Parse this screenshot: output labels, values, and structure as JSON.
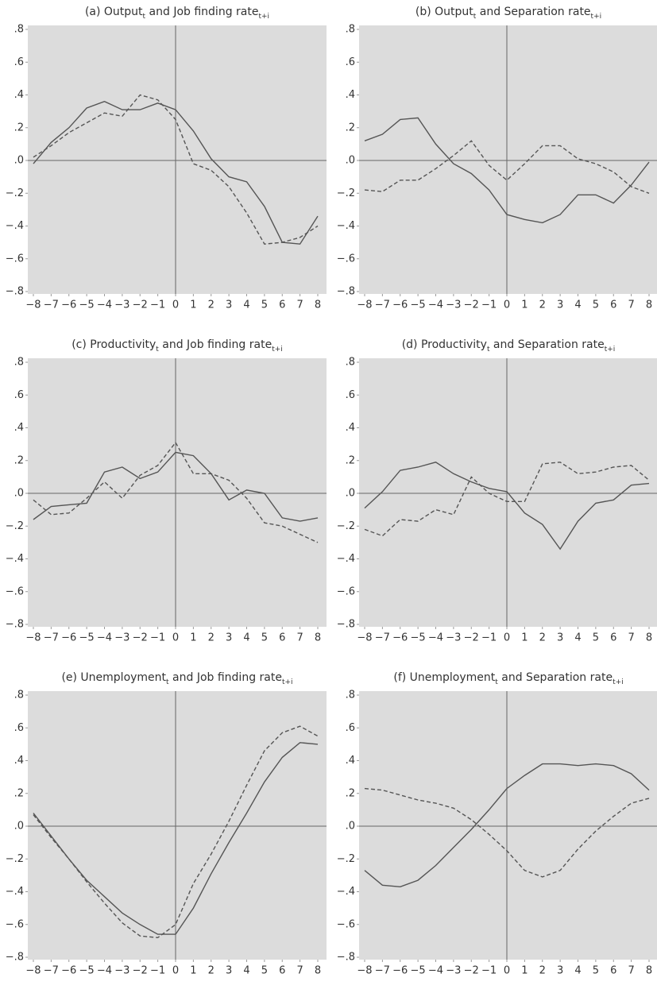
{
  "chart_data": [
    {
      "type": "line",
      "title": {
        "text": [
          "(a) Output",
          " and Job finding rate"
        ],
        "subscripts": [
          "t",
          "t+i"
        ]
      },
      "x": [
        -8,
        -7,
        -6,
        -5,
        -4,
        -3,
        -2,
        -1,
        0,
        1,
        2,
        3,
        4,
        5,
        6,
        7,
        8
      ],
      "xlim": [
        -8,
        8
      ],
      "xticks": [
        {
          "value": -8,
          "label": "−8"
        },
        {
          "value": -7,
          "label": "−7"
        },
        {
          "value": -6,
          "label": "−6"
        },
        {
          "value": -5,
          "label": "−5"
        },
        {
          "value": -4,
          "label": "−4"
        },
        {
          "value": -3,
          "label": "−3"
        },
        {
          "value": -2,
          "label": "−2"
        },
        {
          "value": -1,
          "label": "−1"
        },
        0,
        1,
        2,
        3,
        4,
        5,
        6,
        7,
        8
      ],
      "ylim": [
        -0.8,
        0.8
      ],
      "yticks": [
        {
          "value": -0.8,
          "label": "−.8"
        },
        {
          "value": -0.6,
          "label": "−.6"
        },
        {
          "value": -0.4,
          "label": "−.4"
        },
        {
          "value": -0.2,
          "label": "−.2"
        },
        {
          "value": 0,
          "label": ".0"
        },
        {
          "value": 0.2,
          "label": ".2"
        },
        {
          "value": 0.4,
          "label": ".4"
        },
        {
          "value": 0.6,
          "label": ".6"
        },
        {
          "value": 0.8,
          "label": ".8"
        }
      ],
      "series": [
        {
          "color": "#555555",
          "style": "solid",
          "values": [
            -0.02,
            0.11,
            0.2,
            0.32,
            0.36,
            0.31,
            0.31,
            0.35,
            0.31,
            0.18,
            0.01,
            -0.1,
            -0.13,
            -0.28,
            -0.5,
            -0.51,
            -0.34
          ]
        },
        {
          "color": "#555555",
          "style": "dashed",
          "values": [
            0.02,
            0.09,
            0.17,
            0.23,
            0.29,
            0.27,
            0.4,
            0.37,
            0.25,
            -0.02,
            -0.06,
            -0.16,
            -0.32,
            -0.51,
            -0.5,
            -0.47,
            -0.4
          ]
        }
      ]
    },
    {
      "type": "line",
      "title": {
        "text": [
          "(b) Output",
          " and Separation rate"
        ],
        "subscripts": [
          "t",
          "t+i"
        ]
      },
      "x": [
        -8,
        -7,
        -6,
        -5,
        -4,
        -3,
        -2,
        -1,
        0,
        1,
        2,
        3,
        4,
        5,
        6,
        7,
        8
      ],
      "xlim": [
        -8,
        8
      ],
      "xticks": [
        {
          "value": -8,
          "label": "−8"
        },
        {
          "value": -7,
          "label": "−7"
        },
        {
          "value": -6,
          "label": "−6"
        },
        {
          "value": -5,
          "label": "−5"
        },
        {
          "value": -4,
          "label": "−4"
        },
        {
          "value": -3,
          "label": "−3"
        },
        {
          "value": -2,
          "label": "−2"
        },
        {
          "value": -1,
          "label": "−1"
        },
        0,
        1,
        2,
        3,
        4,
        5,
        6,
        7,
        8
      ],
      "ylim": [
        -0.8,
        0.8
      ],
      "yticks": [
        {
          "value": -0.8,
          "label": "−.8"
        },
        {
          "value": -0.6,
          "label": "−.6"
        },
        {
          "value": -0.4,
          "label": "−.4"
        },
        {
          "value": -0.2,
          "label": "−.2"
        },
        {
          "value": 0,
          "label": ".0"
        },
        {
          "value": 0.2,
          "label": ".2"
        },
        {
          "value": 0.4,
          "label": ".4"
        },
        {
          "value": 0.6,
          "label": ".6"
        },
        {
          "value": 0.8,
          "label": ".8"
        }
      ],
      "series": [
        {
          "color": "#555555",
          "style": "solid",
          "values": [
            0.12,
            0.16,
            0.25,
            0.26,
            0.1,
            -0.02,
            -0.08,
            -0.18,
            -0.33,
            -0.36,
            -0.38,
            -0.33,
            -0.21,
            -0.21,
            -0.26,
            -0.15,
            -0.01
          ]
        },
        {
          "color": "#555555",
          "style": "dashed",
          "values": [
            -0.18,
            -0.19,
            -0.12,
            -0.12,
            -0.05,
            0.03,
            0.12,
            -0.03,
            -0.12,
            -0.02,
            0.09,
            0.09,
            0.01,
            -0.02,
            -0.07,
            -0.16,
            -0.2
          ]
        }
      ]
    },
    {
      "type": "line",
      "title": {
        "text": [
          "(c) Productivity",
          " and Job finding rate"
        ],
        "subscripts": [
          "t",
          "t+i"
        ]
      },
      "x": [
        -8,
        -7,
        -6,
        -5,
        -4,
        -3,
        -2,
        -1,
        0,
        1,
        2,
        3,
        4,
        5,
        6,
        7,
        8
      ],
      "xlim": [
        -8,
        8
      ],
      "xticks": [
        {
          "value": -8,
          "label": "−8"
        },
        {
          "value": -7,
          "label": "−7"
        },
        {
          "value": -6,
          "label": "−6"
        },
        {
          "value": -5,
          "label": "−5"
        },
        {
          "value": -4,
          "label": "−4"
        },
        {
          "value": -3,
          "label": "−3"
        },
        {
          "value": -2,
          "label": "−2"
        },
        {
          "value": -1,
          "label": "−1"
        },
        0,
        1,
        2,
        3,
        4,
        5,
        6,
        7,
        8
      ],
      "ylim": [
        -0.8,
        0.8
      ],
      "yticks": [
        {
          "value": -0.8,
          "label": "−.8"
        },
        {
          "value": -0.6,
          "label": "−.6"
        },
        {
          "value": -0.4,
          "label": "−.4"
        },
        {
          "value": -0.2,
          "label": "−.2"
        },
        {
          "value": 0,
          "label": ".0"
        },
        {
          "value": 0.2,
          "label": ".2"
        },
        {
          "value": 0.4,
          "label": ".4"
        },
        {
          "value": 0.6,
          "label": ".6"
        },
        {
          "value": 0.8,
          "label": ".8"
        }
      ],
      "series": [
        {
          "color": "#555555",
          "style": "solid",
          "values": [
            -0.16,
            -0.08,
            -0.07,
            -0.06,
            0.13,
            0.16,
            0.09,
            0.13,
            0.25,
            0.23,
            0.12,
            -0.04,
            0.02,
            0.0,
            -0.15,
            -0.17,
            -0.15
          ]
        },
        {
          "color": "#555555",
          "style": "dashed",
          "values": [
            -0.04,
            -0.13,
            -0.12,
            -0.03,
            0.07,
            -0.03,
            0.11,
            0.17,
            0.31,
            0.12,
            0.12,
            0.08,
            -0.03,
            -0.18,
            -0.2,
            -0.25,
            -0.3
          ]
        }
      ]
    },
    {
      "type": "line",
      "title": {
        "text": [
          "(d) Productivity",
          " and Separation rate"
        ],
        "subscripts": [
          "t",
          "t+i"
        ]
      },
      "x": [
        -8,
        -7,
        -6,
        -5,
        -4,
        -3,
        -2,
        -1,
        0,
        1,
        2,
        3,
        4,
        5,
        6,
        7,
        8
      ],
      "xlim": [
        -8,
        8
      ],
      "xticks": [
        {
          "value": -8,
          "label": "−8"
        },
        {
          "value": -7,
          "label": "−7"
        },
        {
          "value": -6,
          "label": "−6"
        },
        {
          "value": -5,
          "label": "−5"
        },
        {
          "value": -4,
          "label": "−4"
        },
        {
          "value": -3,
          "label": "−3"
        },
        {
          "value": -2,
          "label": "−2"
        },
        {
          "value": -1,
          "label": "−1"
        },
        0,
        1,
        2,
        3,
        4,
        5,
        6,
        7,
        8
      ],
      "ylim": [
        -0.8,
        0.8
      ],
      "yticks": [
        {
          "value": -0.8,
          "label": "−.8"
        },
        {
          "value": -0.6,
          "label": "−.6"
        },
        {
          "value": -0.4,
          "label": "−.4"
        },
        {
          "value": -0.2,
          "label": "−.2"
        },
        {
          "value": 0,
          "label": ".0"
        },
        {
          "value": 0.2,
          "label": ".2"
        },
        {
          "value": 0.4,
          "label": ".4"
        },
        {
          "value": 0.6,
          "label": ".6"
        },
        {
          "value": 0.8,
          "label": ".8"
        }
      ],
      "series": [
        {
          "color": "#555555",
          "style": "solid",
          "values": [
            -0.09,
            0.01,
            0.14,
            0.16,
            0.19,
            0.12,
            0.07,
            0.03,
            0.01,
            -0.12,
            -0.19,
            -0.34,
            -0.17,
            -0.06,
            -0.04,
            0.05,
            0.06
          ]
        },
        {
          "color": "#555555",
          "style": "dashed",
          "values": [
            -0.22,
            -0.26,
            -0.16,
            -0.17,
            -0.1,
            -0.13,
            0.1,
            0.0,
            -0.05,
            -0.05,
            0.18,
            0.19,
            0.12,
            0.13,
            0.16,
            0.17,
            0.08
          ]
        }
      ]
    },
    {
      "type": "line",
      "title": {
        "text": [
          "(e) Unemployment",
          " and Job finding rate"
        ],
        "subscripts": [
          "t",
          "t+i"
        ]
      },
      "x": [
        -8,
        -7,
        -6,
        -5,
        -4,
        -3,
        -2,
        -1,
        0,
        1,
        2,
        3,
        4,
        5,
        6,
        7,
        8
      ],
      "xlim": [
        -8,
        8
      ],
      "xticks": [
        {
          "value": -8,
          "label": "−8"
        },
        {
          "value": -7,
          "label": "−7"
        },
        {
          "value": -6,
          "label": "−6"
        },
        {
          "value": -5,
          "label": "−5"
        },
        {
          "value": -4,
          "label": "−4"
        },
        {
          "value": -3,
          "label": "−3"
        },
        {
          "value": -2,
          "label": "−2"
        },
        {
          "value": -1,
          "label": "−1"
        },
        0,
        1,
        2,
        3,
        4,
        5,
        6,
        7,
        8
      ],
      "ylim": [
        -0.8,
        0.8
      ],
      "yticks": [
        {
          "value": -0.8,
          "label": "−.8"
        },
        {
          "value": -0.6,
          "label": "−.6"
        },
        {
          "value": -0.4,
          "label": "−.4"
        },
        {
          "value": -0.2,
          "label": "−.2"
        },
        {
          "value": 0,
          "label": ".0"
        },
        {
          "value": 0.2,
          "label": ".2"
        },
        {
          "value": 0.4,
          "label": ".4"
        },
        {
          "value": 0.6,
          "label": ".6"
        },
        {
          "value": 0.8,
          "label": ".8"
        }
      ],
      "series": [
        {
          "color": "#555555",
          "style": "solid",
          "values": [
            0.08,
            -0.06,
            -0.2,
            -0.33,
            -0.43,
            -0.53,
            -0.6,
            -0.66,
            -0.66,
            -0.5,
            -0.29,
            -0.1,
            0.08,
            0.27,
            0.42,
            0.51,
            0.5
          ]
        },
        {
          "color": "#555555",
          "style": "dashed",
          "values": [
            0.07,
            -0.07,
            -0.2,
            -0.34,
            -0.47,
            -0.59,
            -0.67,
            -0.68,
            -0.6,
            -0.35,
            -0.17,
            0.03,
            0.25,
            0.46,
            0.57,
            0.61,
            0.55
          ]
        }
      ]
    },
    {
      "type": "line",
      "title": {
        "text": [
          "(f) Unemployment",
          " and Separation rate"
        ],
        "subscripts": [
          "t",
          "t+i"
        ]
      },
      "x": [
        -8,
        -7,
        -6,
        -5,
        -4,
        -3,
        -2,
        -1,
        0,
        1,
        2,
        3,
        4,
        5,
        6,
        7,
        8
      ],
      "xlim": [
        -8,
        8
      ],
      "xticks": [
        {
          "value": -8,
          "label": "−8"
        },
        {
          "value": -7,
          "label": "−7"
        },
        {
          "value": -6,
          "label": "−6"
        },
        {
          "value": -5,
          "label": "−5"
        },
        {
          "value": -4,
          "label": "−4"
        },
        {
          "value": -3,
          "label": "−3"
        },
        {
          "value": -2,
          "label": "−2"
        },
        {
          "value": -1,
          "label": "−1"
        },
        0,
        1,
        2,
        3,
        4,
        5,
        6,
        7,
        8
      ],
      "ylim": [
        -0.8,
        0.8
      ],
      "yticks": [
        {
          "value": -0.8,
          "label": "−.8"
        },
        {
          "value": -0.6,
          "label": "−.6"
        },
        {
          "value": -0.4,
          "label": "−.4"
        },
        {
          "value": -0.2,
          "label": "−.2"
        },
        {
          "value": 0,
          "label": ".0"
        },
        {
          "value": 0.2,
          "label": ".2"
        },
        {
          "value": 0.4,
          "label": ".4"
        },
        {
          "value": 0.6,
          "label": ".6"
        },
        {
          "value": 0.8,
          "label": ".8"
        }
      ],
      "series": [
        {
          "color": "#555555",
          "style": "solid",
          "values": [
            -0.27,
            -0.36,
            -0.37,
            -0.33,
            -0.24,
            -0.13,
            -0.02,
            0.1,
            0.23,
            0.31,
            0.38,
            0.38,
            0.37,
            0.38,
            0.37,
            0.32,
            0.22
          ]
        },
        {
          "color": "#555555",
          "style": "dashed",
          "values": [
            0.23,
            0.22,
            0.19,
            0.16,
            0.14,
            0.11,
            0.04,
            -0.05,
            -0.15,
            -0.27,
            -0.31,
            -0.27,
            -0.14,
            -0.03,
            0.06,
            0.14,
            0.17
          ]
        }
      ]
    }
  ]
}
